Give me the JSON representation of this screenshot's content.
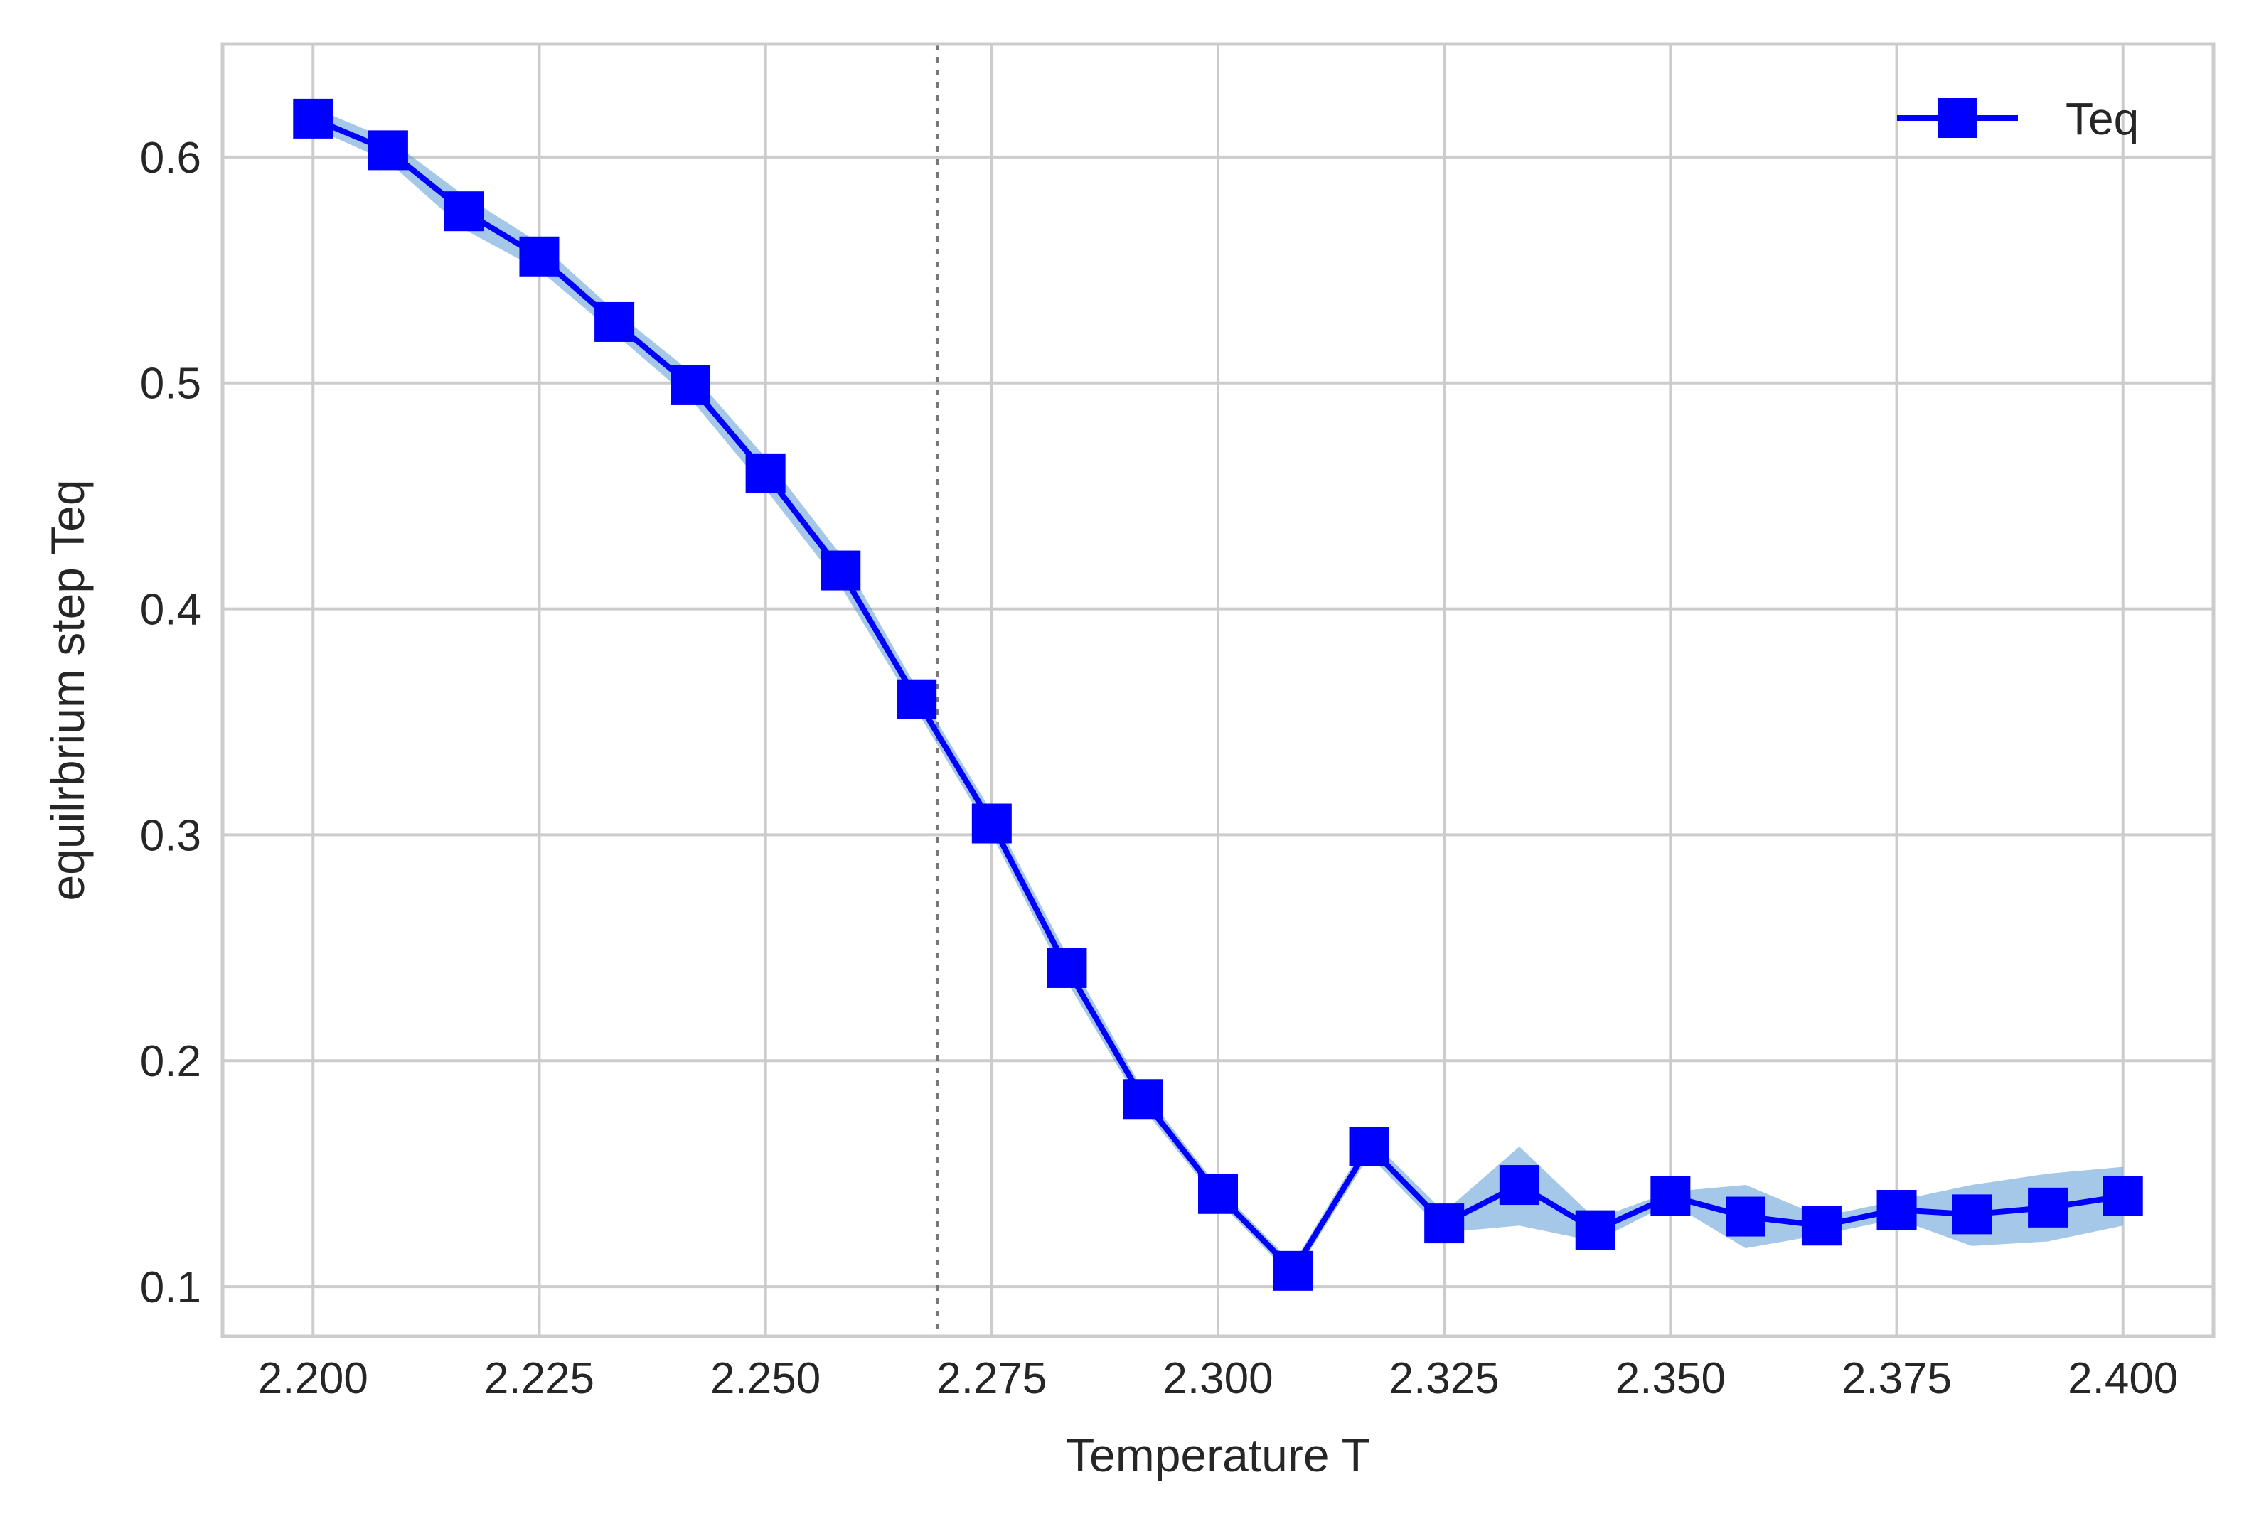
{
  "chart_data": {
    "type": "line",
    "xlabel": "Temperature T",
    "ylabel": "equilrbrium step Teq",
    "xlim": [
      2.19,
      2.41
    ],
    "ylim": [
      0.078,
      0.65
    ],
    "xticks": [
      2.2,
      2.225,
      2.25,
      2.275,
      2.3,
      2.325,
      2.35,
      2.375,
      2.4
    ],
    "xtick_labels": [
      "2.200",
      "2.225",
      "2.250",
      "2.275",
      "2.300",
      "2.325",
      "2.350",
      "2.375",
      "2.400"
    ],
    "yticks": [
      0.1,
      0.2,
      0.3,
      0.4,
      0.5,
      0.6
    ],
    "ytick_labels": [
      "0.1",
      "0.2",
      "0.3",
      "0.4",
      "0.5",
      "0.6"
    ],
    "grid": true,
    "legend_position": "top-right",
    "vline": {
      "x": 2.269,
      "style": "dotted",
      "color": "#777777"
    },
    "series": [
      {
        "name": "Teq",
        "color": "#0000ff",
        "band_color": "#5b9bd5",
        "marker": "square",
        "x": [
          2.2,
          2.2083,
          2.2167,
          2.225,
          2.2333,
          2.2417,
          2.25,
          2.2583,
          2.2667,
          2.275,
          2.2833,
          2.2917,
          2.3,
          2.3083,
          2.3167,
          2.325,
          2.3333,
          2.3417,
          2.35,
          2.3583,
          2.3667,
          2.375,
          2.3833,
          2.3917,
          2.4
        ],
        "y": [
          0.617,
          0.603,
          0.576,
          0.556,
          0.527,
          0.499,
          0.46,
          0.417,
          0.36,
          0.305,
          0.241,
          0.183,
          0.141,
          0.107,
          0.162,
          0.128,
          0.145,
          0.125,
          0.14,
          0.131,
          0.127,
          0.134,
          0.132,
          0.135,
          0.14
        ],
        "y_low": [
          0.613,
          0.598,
          0.568,
          0.55,
          0.522,
          0.493,
          0.453,
          0.41,
          0.355,
          0.3,
          0.235,
          0.179,
          0.138,
          0.104,
          0.158,
          0.124,
          0.127,
          0.12,
          0.137,
          0.117,
          0.123,
          0.13,
          0.118,
          0.12,
          0.127
        ],
        "y_high": [
          0.622,
          0.608,
          0.583,
          0.562,
          0.532,
          0.505,
          0.467,
          0.424,
          0.365,
          0.31,
          0.247,
          0.187,
          0.144,
          0.11,
          0.166,
          0.133,
          0.162,
          0.13,
          0.142,
          0.145,
          0.131,
          0.138,
          0.145,
          0.15,
          0.153
        ]
      }
    ]
  }
}
